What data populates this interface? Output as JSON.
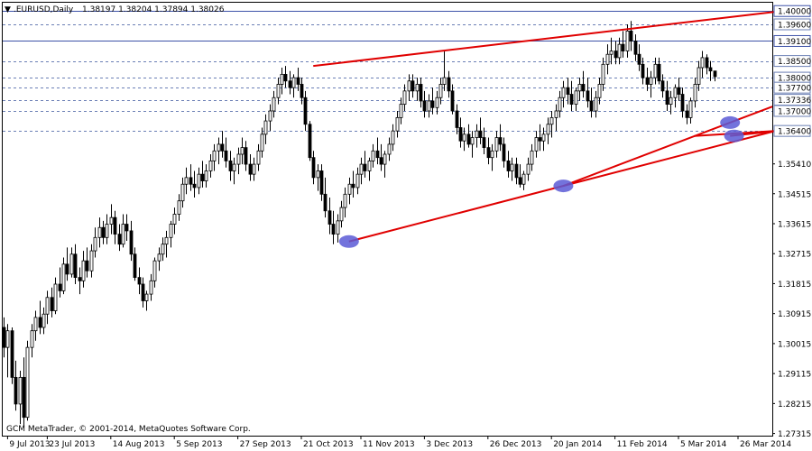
{
  "header": {
    "marker": "▼",
    "title": ".EURUSD,Daily",
    "ohlc": "1.38197 1.38204 1.37894 1.38026"
  },
  "footer": {
    "copyright": "GCM MetaTrader, © 2001-2014, MetaQuotes Software Corp."
  },
  "colors": {
    "background": "#ffffff",
    "candle_up": "#000000",
    "candle_down": "#000000",
    "grid_dashed": "#6b7fb5",
    "level_solid": "#3d52a8",
    "trendline": "#e00000",
    "touch_point": "#5a5ad6",
    "label_box_fill": "#ffffff",
    "label_box_border": "#3d52a8"
  },
  "chart_data": {
    "type": "candlestick",
    "ylim": [
      1.2725,
      1.4025
    ],
    "y_ticks": [
      "1.40000",
      "1.39600",
      "1.39100",
      "1.38500",
      "1.38000",
      "1.37700",
      "1.37336",
      "1.37000",
      "1.36400",
      "1.35410",
      "1.34515",
      "1.33615",
      "1.32715",
      "1.31815",
      "1.30915",
      "1.30015",
      "1.29115",
      "1.28215",
      "1.27315"
    ],
    "x_ticks": [
      {
        "label": "9 Jul 2013",
        "index": 1
      },
      {
        "label": "23 Jul 2013",
        "index": 11
      },
      {
        "label": "14 Aug 2013",
        "index": 27
      },
      {
        "label": "5 Sep 2013",
        "index": 43
      },
      {
        "label": "27 Sep 2013",
        "index": 59
      },
      {
        "label": "21 Oct 2013",
        "index": 75
      },
      {
        "label": "11 Nov 2013",
        "index": 90
      },
      {
        "label": "3 Dec 2013",
        "index": 106
      },
      {
        "label": "26 Dec 2013",
        "index": 122
      },
      {
        "label": "20 Jan 2014",
        "index": 138
      },
      {
        "label": "11 Feb 2014",
        "index": 154
      },
      {
        "label": "5 Mar 2014",
        "index": 170
      },
      {
        "label": "26 Mar 2014",
        "index": 185
      }
    ],
    "price_levels": [
      {
        "value": 1.4,
        "label": "1.40000",
        "style": "solid"
      },
      {
        "value": 1.396,
        "label": "1.39600",
        "style": "dashed"
      },
      {
        "value": 1.391,
        "label": "1.39100",
        "style": "solid"
      },
      {
        "value": 1.385,
        "label": "1.38500",
        "style": "dashed"
      },
      {
        "value": 1.38,
        "label": "1.38000",
        "style": "dashed"
      },
      {
        "value": 1.377,
        "label": "1.37700",
        "style": "dashed"
      },
      {
        "value": 1.37336,
        "label": "1.37336",
        "style": "dashed"
      },
      {
        "value": 1.37,
        "label": "1.37000",
        "style": "dashed"
      },
      {
        "value": 1.364,
        "label": "1.36400",
        "style": "dashed"
      }
    ],
    "trendlines": [
      {
        "from": [
          78,
          1.3835
        ],
        "to": [
          196,
          1.4
        ],
        "extend": false
      },
      {
        "from": [
          87,
          1.3308
        ],
        "to": [
          141,
          1.3475
        ],
        "extend": true
      },
      {
        "from": [
          141,
          1.3475
        ],
        "to": [
          183,
          1.3665
        ],
        "extend": true
      },
      {
        "from": [
          183,
          1.3625
        ],
        "to": [
          196,
          1.3641
        ],
        "extend": false
      },
      {
        "from": [
          174,
          1.3625
        ],
        "to": [
          196,
          1.3641
        ],
        "extend": false
      }
    ],
    "touch_points": [
      {
        "index": 87,
        "value": 1.3308
      },
      {
        "index": 141,
        "value": 1.3475
      },
      {
        "index": 183,
        "value": 1.3665
      },
      {
        "index": 184,
        "value": 1.3625
      }
    ],
    "candles": [
      [
        1.305,
        1.308,
        1.296,
        1.299
      ],
      [
        1.299,
        1.306,
        1.29,
        1.304
      ],
      [
        1.304,
        1.305,
        1.288,
        1.29
      ],
      [
        1.29,
        1.295,
        1.28,
        1.282
      ],
      [
        1.282,
        1.292,
        1.276,
        1.29
      ],
      [
        1.29,
        1.296,
        1.275,
        1.278
      ],
      [
        1.278,
        1.301,
        1.277,
        1.299
      ],
      [
        1.299,
        1.306,
        1.296,
        1.304
      ],
      [
        1.304,
        1.31,
        1.301,
        1.308
      ],
      [
        1.308,
        1.313,
        1.303,
        1.305
      ],
      [
        1.305,
        1.311,
        1.303,
        1.309
      ],
      [
        1.309,
        1.316,
        1.306,
        1.314
      ],
      [
        1.314,
        1.317,
        1.308,
        1.31
      ],
      [
        1.31,
        1.32,
        1.309,
        1.318
      ],
      [
        1.318,
        1.323,
        1.314,
        1.316
      ],
      [
        1.316,
        1.326,
        1.315,
        1.324
      ],
      [
        1.324,
        1.329,
        1.319,
        1.321
      ],
      [
        1.321,
        1.329,
        1.32,
        1.327
      ],
      [
        1.327,
        1.33,
        1.318,
        1.32
      ],
      [
        1.32,
        1.323,
        1.315,
        1.319
      ],
      [
        1.319,
        1.328,
        1.317,
        1.325
      ],
      [
        1.325,
        1.329,
        1.32,
        1.322
      ],
      [
        1.322,
        1.33,
        1.32,
        1.328
      ],
      [
        1.328,
        1.335,
        1.326,
        1.332
      ],
      [
        1.332,
        1.338,
        1.329,
        1.335
      ],
      [
        1.335,
        1.337,
        1.33,
        1.332
      ],
      [
        1.332,
        1.339,
        1.33,
        1.336
      ],
      [
        1.336,
        1.342,
        1.333,
        1.338
      ],
      [
        1.338,
        1.34,
        1.33,
        1.333
      ],
      [
        1.333,
        1.336,
        1.328,
        1.33
      ],
      [
        1.33,
        1.339,
        1.329,
        1.336
      ],
      [
        1.336,
        1.339,
        1.331,
        1.334
      ],
      [
        1.334,
        1.337,
        1.325,
        1.327
      ],
      [
        1.327,
        1.329,
        1.319,
        1.32
      ],
      [
        1.32,
        1.323,
        1.315,
        1.318
      ],
      [
        1.318,
        1.32,
        1.311,
        1.313
      ],
      [
        1.313,
        1.316,
        1.31,
        1.315
      ],
      [
        1.315,
        1.321,
        1.313,
        1.319
      ],
      [
        1.319,
        1.326,
        1.317,
        1.325
      ],
      [
        1.325,
        1.329,
        1.322,
        1.327
      ],
      [
        1.327,
        1.332,
        1.325,
        1.33
      ],
      [
        1.33,
        1.334,
        1.326,
        1.332
      ],
      [
        1.332,
        1.337,
        1.329,
        1.336
      ],
      [
        1.336,
        1.341,
        1.333,
        1.339
      ],
      [
        1.339,
        1.345,
        1.337,
        1.343
      ],
      [
        1.343,
        1.35,
        1.341,
        1.348
      ],
      [
        1.348,
        1.353,
        1.345,
        1.35
      ],
      [
        1.35,
        1.354,
        1.346,
        1.348
      ],
      [
        1.348,
        1.352,
        1.344,
        1.347
      ],
      [
        1.347,
        1.353,
        1.345,
        1.351
      ],
      [
        1.351,
        1.355,
        1.347,
        1.349
      ],
      [
        1.349,
        1.354,
        1.347,
        1.352
      ],
      [
        1.352,
        1.357,
        1.35,
        1.355
      ],
      [
        1.355,
        1.36,
        1.352,
        1.358
      ],
      [
        1.358,
        1.362,
        1.354,
        1.36
      ],
      [
        1.36,
        1.364,
        1.356,
        1.358
      ],
      [
        1.358,
        1.362,
        1.353,
        1.355
      ],
      [
        1.355,
        1.358,
        1.349,
        1.352
      ],
      [
        1.352,
        1.356,
        1.348,
        1.354
      ],
      [
        1.354,
        1.359,
        1.351,
        1.357
      ],
      [
        1.357,
        1.362,
        1.354,
        1.359
      ],
      [
        1.359,
        1.361,
        1.352,
        1.354
      ],
      [
        1.354,
        1.357,
        1.349,
        1.351
      ],
      [
        1.351,
        1.356,
        1.349,
        1.354
      ],
      [
        1.354,
        1.36,
        1.352,
        1.358
      ],
      [
        1.358,
        1.365,
        1.356,
        1.363
      ],
      [
        1.363,
        1.369,
        1.36,
        1.367
      ],
      [
        1.367,
        1.372,
        1.364,
        1.37
      ],
      [
        1.37,
        1.376,
        1.368,
        1.374
      ],
      [
        1.374,
        1.38,
        1.372,
        1.378
      ],
      [
        1.378,
        1.383,
        1.375,
        1.381
      ],
      [
        1.381,
        1.3835,
        1.377,
        1.379
      ],
      [
        1.379,
        1.382,
        1.375,
        1.377
      ],
      [
        1.377,
        1.381,
        1.374,
        1.38
      ],
      [
        1.38,
        1.383,
        1.376,
        1.378
      ],
      [
        1.378,
        1.38,
        1.372,
        1.374
      ],
      [
        1.374,
        1.376,
        1.364,
        1.366
      ],
      [
        1.366,
        1.367,
        1.355,
        1.356
      ],
      [
        1.356,
        1.358,
        1.348,
        1.35
      ],
      [
        1.35,
        1.354,
        1.346,
        1.352
      ],
      [
        1.352,
        1.354,
        1.343,
        1.345
      ],
      [
        1.345,
        1.35,
        1.338,
        1.34
      ],
      [
        1.34,
        1.344,
        1.333,
        1.336
      ],
      [
        1.336,
        1.34,
        1.33,
        1.333
      ],
      [
        1.333,
        1.339,
        1.3305,
        1.337
      ],
      [
        1.337,
        1.343,
        1.335,
        1.341
      ],
      [
        1.341,
        1.347,
        1.338,
        1.345
      ],
      [
        1.345,
        1.35,
        1.342,
        1.348
      ],
      [
        1.348,
        1.352,
        1.344,
        1.347
      ],
      [
        1.347,
        1.353,
        1.345,
        1.351
      ],
      [
        1.351,
        1.356,
        1.348,
        1.354
      ],
      [
        1.354,
        1.358,
        1.35,
        1.352
      ],
      [
        1.352,
        1.356,
        1.349,
        1.355
      ],
      [
        1.355,
        1.36,
        1.353,
        1.358
      ],
      [
        1.358,
        1.362,
        1.354,
        1.356
      ],
      [
        1.356,
        1.36,
        1.352,
        1.354
      ],
      [
        1.354,
        1.358,
        1.35,
        1.357
      ],
      [
        1.357,
        1.362,
        1.355,
        1.36
      ],
      [
        1.36,
        1.366,
        1.358,
        1.364
      ],
      [
        1.364,
        1.37,
        1.362,
        1.368
      ],
      [
        1.368,
        1.374,
        1.366,
        1.372
      ],
      [
        1.372,
        1.378,
        1.37,
        1.376
      ],
      [
        1.376,
        1.381,
        1.373,
        1.379
      ],
      [
        1.379,
        1.381,
        1.374,
        1.376
      ],
      [
        1.376,
        1.38,
        1.373,
        1.378
      ],
      [
        1.378,
        1.38,
        1.371,
        1.373
      ],
      [
        1.373,
        1.376,
        1.368,
        1.37
      ],
      [
        1.37,
        1.375,
        1.368,
        1.373
      ],
      [
        1.373,
        1.377,
        1.369,
        1.371
      ],
      [
        1.371,
        1.376,
        1.369,
        1.374
      ],
      [
        1.374,
        1.38,
        1.372,
        1.378
      ],
      [
        1.378,
        1.388,
        1.376,
        1.38
      ],
      [
        1.38,
        1.382,
        1.374,
        1.376
      ],
      [
        1.376,
        1.378,
        1.369,
        1.37
      ],
      [
        1.37,
        1.372,
        1.363,
        1.365
      ],
      [
        1.365,
        1.368,
        1.359,
        1.361
      ],
      [
        1.361,
        1.365,
        1.358,
        1.363
      ],
      [
        1.363,
        1.366,
        1.359,
        1.36
      ],
      [
        1.36,
        1.364,
        1.356,
        1.362
      ],
      [
        1.362,
        1.366,
        1.359,
        1.364
      ],
      [
        1.364,
        1.368,
        1.36,
        1.362
      ],
      [
        1.362,
        1.365,
        1.357,
        1.359
      ],
      [
        1.359,
        1.362,
        1.354,
        1.356
      ],
      [
        1.356,
        1.36,
        1.352,
        1.358
      ],
      [
        1.358,
        1.364,
        1.356,
        1.362
      ],
      [
        1.362,
        1.366,
        1.358,
        1.36
      ],
      [
        1.36,
        1.362,
        1.353,
        1.355
      ],
      [
        1.355,
        1.358,
        1.35,
        1.352
      ],
      [
        1.352,
        1.356,
        1.349,
        1.354
      ],
      [
        1.354,
        1.356,
        1.348,
        1.35
      ],
      [
        1.35,
        1.354,
        1.347,
        1.348
      ],
      [
        1.348,
        1.352,
        1.3462,
        1.351
      ],
      [
        1.351,
        1.356,
        1.349,
        1.354
      ],
      [
        1.354,
        1.36,
        1.352,
        1.358
      ],
      [
        1.358,
        1.364,
        1.356,
        1.362
      ],
      [
        1.362,
        1.366,
        1.358,
        1.361
      ],
      [
        1.361,
        1.365,
        1.358,
        1.363
      ],
      [
        1.363,
        1.368,
        1.36,
        1.366
      ],
      [
        1.366,
        1.37,
        1.362,
        1.368
      ],
      [
        1.368,
        1.372,
        1.364,
        1.37
      ],
      [
        1.37,
        1.376,
        1.368,
        1.374
      ],
      [
        1.374,
        1.379,
        1.371,
        1.377
      ],
      [
        1.377,
        1.38,
        1.372,
        1.375
      ],
      [
        1.375,
        1.379,
        1.37,
        1.372
      ],
      [
        1.372,
        1.377,
        1.37,
        1.376
      ],
      [
        1.376,
        1.38,
        1.373,
        1.378
      ],
      [
        1.378,
        1.382,
        1.374,
        1.376
      ],
      [
        1.376,
        1.38,
        1.371,
        1.373
      ],
      [
        1.373,
        1.377,
        1.368,
        1.37
      ],
      [
        1.37,
        1.376,
        1.368,
        1.374
      ],
      [
        1.374,
        1.38,
        1.372,
        1.378
      ],
      [
        1.378,
        1.386,
        1.376,
        1.384
      ],
      [
        1.384,
        1.39,
        1.381,
        1.387
      ],
      [
        1.387,
        1.392,
        1.384,
        1.388
      ],
      [
        1.388,
        1.391,
        1.384,
        1.386
      ],
      [
        1.386,
        1.392,
        1.384,
        1.39
      ],
      [
        1.39,
        1.394,
        1.386,
        1.388
      ],
      [
        1.388,
        1.396,
        1.386,
        1.394
      ],
      [
        1.394,
        1.397,
        1.388,
        1.391
      ],
      [
        1.391,
        1.393,
        1.385,
        1.387
      ],
      [
        1.387,
        1.39,
        1.382,
        1.384
      ],
      [
        1.384,
        1.386,
        1.378,
        1.38
      ],
      [
        1.38,
        1.383,
        1.376,
        1.378
      ],
      [
        1.378,
        1.382,
        1.374,
        1.38
      ],
      [
        1.38,
        1.386,
        1.378,
        1.384
      ],
      [
        1.384,
        1.386,
        1.378,
        1.379
      ],
      [
        1.379,
        1.381,
        1.374,
        1.376
      ],
      [
        1.376,
        1.379,
        1.37,
        1.372
      ],
      [
        1.372,
        1.376,
        1.369,
        1.374
      ],
      [
        1.374,
        1.378,
        1.371,
        1.377
      ],
      [
        1.377,
        1.38,
        1.373,
        1.375
      ],
      [
        1.375,
        1.377,
        1.368,
        1.37
      ],
      [
        1.37,
        1.372,
        1.366,
        1.368
      ],
      [
        1.368,
        1.374,
        1.3662,
        1.373
      ],
      [
        1.373,
        1.38,
        1.371,
        1.378
      ],
      [
        1.378,
        1.385,
        1.376,
        1.383
      ],
      [
        1.383,
        1.388,
        1.38,
        1.386
      ],
      [
        1.386,
        1.387,
        1.381,
        1.383
      ],
      [
        1.383,
        1.385,
        1.379,
        1.382
      ],
      [
        1.382,
        1.382,
        1.3789,
        1.3803
      ]
    ]
  }
}
